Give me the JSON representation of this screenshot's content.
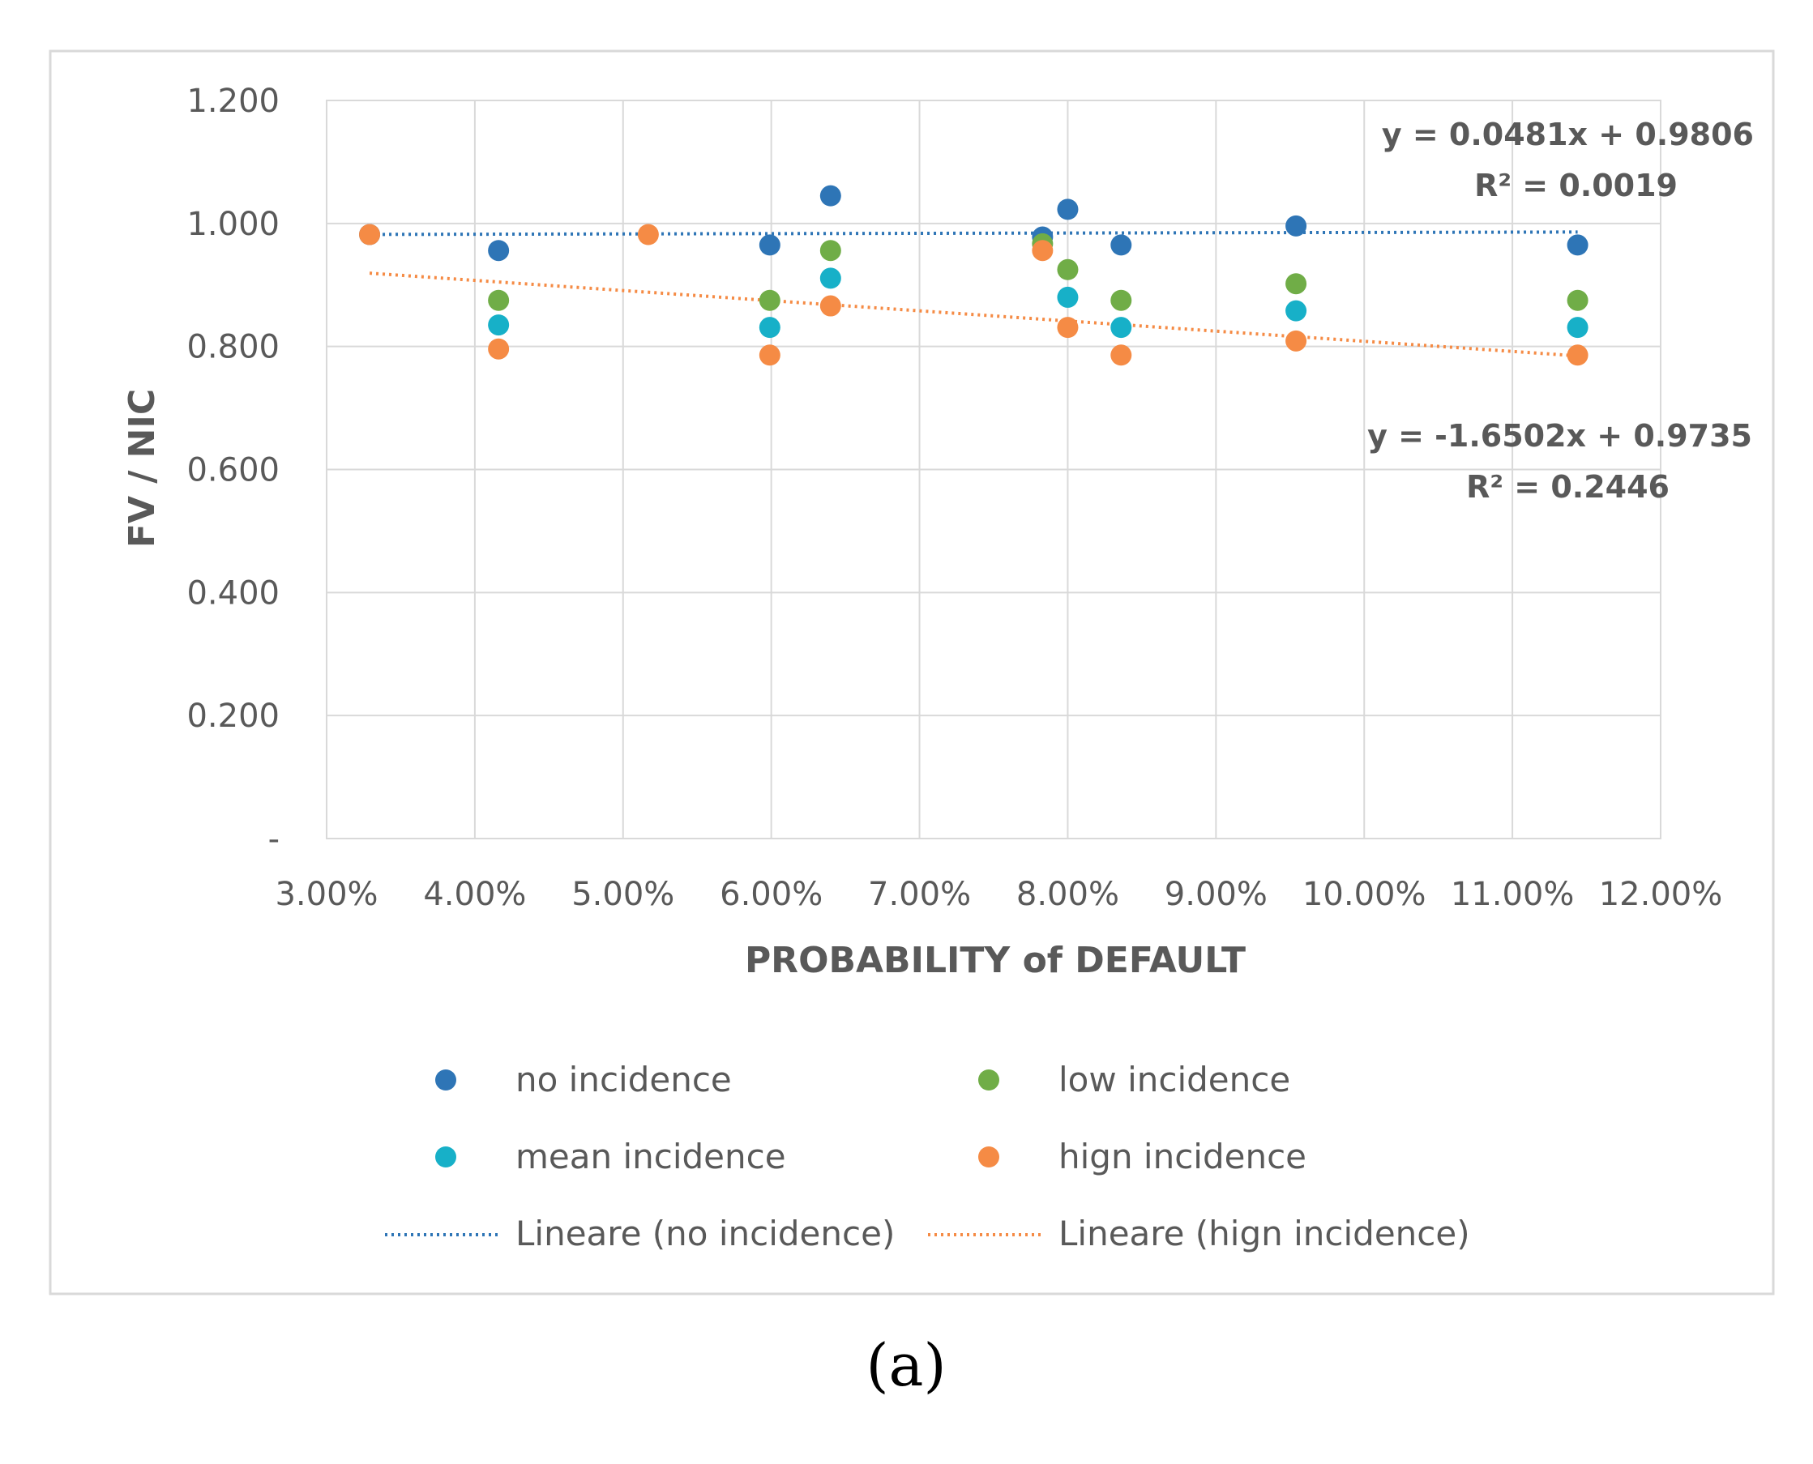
{
  "chart_data": {
    "type": "scatter",
    "xlabel": "PROBABILITY of DEFAULT",
    "ylabel": "FV / NIC",
    "xlim": [
      0.03,
      0.12
    ],
    "ylim": [
      0,
      1.2
    ],
    "x_ticks": [
      0.03,
      0.04,
      0.05,
      0.06,
      0.07,
      0.08,
      0.09,
      0.1,
      0.11,
      0.12
    ],
    "x_tick_labels": [
      "3.00%",
      "4.00%",
      "5.00%",
      "6.00%",
      "7.00%",
      "8.00%",
      "9.00%",
      "10.00%",
      "11.00%",
      "12.00%"
    ],
    "y_ticks": [
      0,
      0.2,
      0.4,
      0.6,
      0.8,
      1.0,
      1.2
    ],
    "y_tick_labels": [
      "-",
      "0.200",
      "0.400",
      "0.600",
      "0.800",
      "1.000",
      "1.200"
    ],
    "grid": true,
    "series": [
      {
        "name": "no incidence",
        "color": "#2e75b6",
        "points": [
          [
            0.0329,
            0.982
          ],
          [
            0.0416,
            0.956
          ],
          [
            0.0599,
            0.965
          ],
          [
            0.064,
            1.045
          ],
          [
            0.0783,
            0.978
          ],
          [
            0.08,
            1.023
          ],
          [
            0.0836,
            0.965
          ],
          [
            0.0954,
            0.996
          ],
          [
            0.1144,
            0.965
          ]
        ]
      },
      {
        "name": "low incidence",
        "color": "#70ad47",
        "points": [
          [
            0.0416,
            0.875
          ],
          [
            0.0599,
            0.875
          ],
          [
            0.064,
            0.956
          ],
          [
            0.0783,
            0.967
          ],
          [
            0.08,
            0.925
          ],
          [
            0.0836,
            0.875
          ],
          [
            0.0954,
            0.902
          ],
          [
            0.1144,
            0.875
          ]
        ]
      },
      {
        "name": "mean incidence",
        "color": "#17b0c8",
        "points": [
          [
            0.0416,
            0.835
          ],
          [
            0.0599,
            0.831
          ],
          [
            0.064,
            0.911
          ],
          [
            0.08,
            0.88
          ],
          [
            0.0836,
            0.831
          ],
          [
            0.0954,
            0.858
          ],
          [
            0.1144,
            0.831
          ]
        ]
      },
      {
        "name": "hign incidence",
        "color": "#f58b45",
        "points": [
          [
            0.0329,
            0.982
          ],
          [
            0.0416,
            0.796
          ],
          [
            0.0517,
            0.982
          ],
          [
            0.0599,
            0.786
          ],
          [
            0.064,
            0.866
          ],
          [
            0.0783,
            0.956
          ],
          [
            0.08,
            0.831
          ],
          [
            0.0836,
            0.786
          ],
          [
            0.0954,
            0.809
          ],
          [
            0.1144,
            0.786
          ]
        ]
      }
    ],
    "trendlines": [
      {
        "name": "Lineare (no incidence)",
        "color": "#2e75b6",
        "slope": 0.0481,
        "intercept": 0.9806,
        "x_range": [
          0.0329,
          0.1144
        ],
        "equation": "y = 0.0481x  + 0.9806",
        "r2_text": "R² = 0.0019"
      },
      {
        "name": "Lineare (hign incidence)",
        "color": "#f58b45",
        "slope": -1.6502,
        "intercept": 0.9735,
        "x_range": [
          0.0329,
          0.1144
        ],
        "equation": "y = -1.6502x  + 0.9735",
        "r2_text": "R² = 0.2446"
      }
    ],
    "legend_position": "bottom"
  },
  "caption": "(a)"
}
